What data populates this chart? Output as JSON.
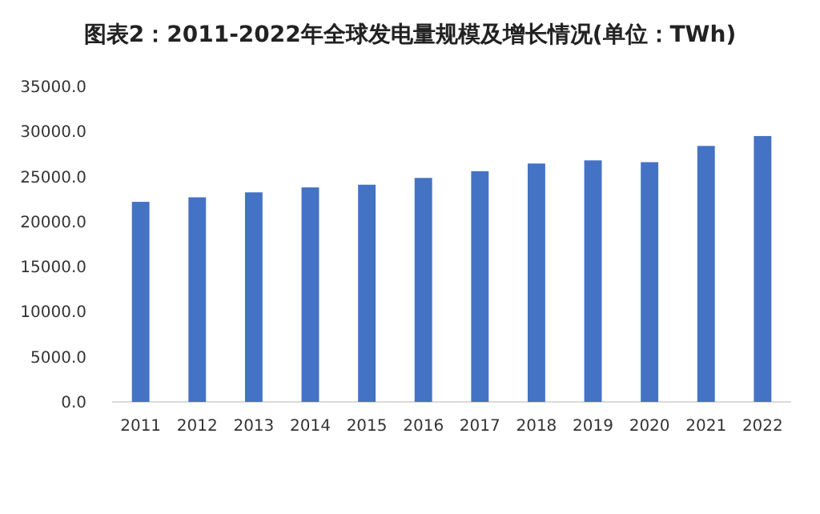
{
  "chart_data": {
    "type": "bar",
    "title": "图表2：2011-2022年全球发电量规模及增长情况(单位：TWh)",
    "categories": [
      "2011",
      "2012",
      "2013",
      "2014",
      "2015",
      "2016",
      "2017",
      "2018",
      "2019",
      "2020",
      "2021",
      "2022"
    ],
    "values": [
      22200,
      22700,
      23250,
      23800,
      24100,
      24850,
      25600,
      26450,
      26800,
      26600,
      28400,
      29500
    ],
    "color": "#4472c4",
    "ylim": [
      0,
      35000
    ],
    "yticks": [
      {
        "value": 0,
        "label": "0.0"
      },
      {
        "value": 5000,
        "label": "5000.0"
      },
      {
        "value": 10000,
        "label": "10000.0"
      },
      {
        "value": 15000,
        "label": "15000.0"
      },
      {
        "value": 20000,
        "label": "20000.0"
      },
      {
        "value": 25000,
        "label": "25000.0"
      },
      {
        "value": 30000,
        "label": "30000.0"
      },
      {
        "value": 35000,
        "label": "35000.0"
      }
    ],
    "grid": false
  }
}
